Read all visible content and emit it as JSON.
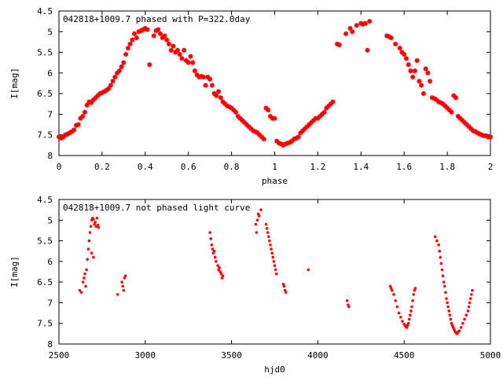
{
  "colors": {
    "data": "#ff0000",
    "frame": "#000000",
    "background": "#ffffff"
  },
  "chart_data": [
    {
      "type": "scatter",
      "title": "042818+1009.7 phased with P=322.0day",
      "xlabel": "phase",
      "ylabel": "I[mag]",
      "xlim": [
        0,
        2
      ],
      "ylim": [
        8,
        4.5
      ],
      "y_inverted": true,
      "grid": false,
      "legend": "none",
      "marker": "star",
      "xticks": [
        "0",
        "0.2",
        "0.4",
        "0.6",
        "0.8",
        "1",
        "1.2",
        "1.4",
        "1.6",
        "1.8",
        "2"
      ],
      "yticks": [
        "4.5",
        "5",
        "5.5",
        "6",
        "6.5",
        "7",
        "7.5",
        "8"
      ],
      "points": [
        [
          0.0,
          7.55
        ],
        [
          0.01,
          7.58
        ],
        [
          0.02,
          7.55
        ],
        [
          0.03,
          7.5
        ],
        [
          0.04,
          7.48
        ],
        [
          0.05,
          7.45
        ],
        [
          0.06,
          7.42
        ],
        [
          0.07,
          7.38
        ],
        [
          0.08,
          7.27
        ],
        [
          0.09,
          7.25
        ],
        [
          0.1,
          7.1
        ],
        [
          0.11,
          7.05
        ],
        [
          0.12,
          6.95
        ],
        [
          0.13,
          6.78
        ],
        [
          0.14,
          6.7
        ],
        [
          0.15,
          6.72
        ],
        [
          0.16,
          6.65
        ],
        [
          0.17,
          6.6
        ],
        [
          0.18,
          6.55
        ],
        [
          0.19,
          6.5
        ],
        [
          0.2,
          6.48
        ],
        [
          0.21,
          6.45
        ],
        [
          0.22,
          6.42
        ],
        [
          0.23,
          6.38
        ],
        [
          0.24,
          6.3
        ],
        [
          0.25,
          6.2
        ],
        [
          0.26,
          6.1
        ],
        [
          0.27,
          6.0
        ],
        [
          0.28,
          5.95
        ],
        [
          0.29,
          5.85
        ],
        [
          0.3,
          5.75
        ],
        [
          0.31,
          5.55
        ],
        [
          0.32,
          5.4
        ],
        [
          0.33,
          5.3
        ],
        [
          0.34,
          5.2
        ],
        [
          0.35,
          5.05
        ],
        [
          0.36,
          5.15
        ],
        [
          0.37,
          5.0
        ],
        [
          0.38,
          4.98
        ],
        [
          0.39,
          4.95
        ],
        [
          0.4,
          4.92
        ],
        [
          0.41,
          4.95
        ],
        [
          0.42,
          5.8
        ],
        [
          0.44,
          5.1
        ],
        [
          0.45,
          4.98
        ],
        [
          0.46,
          4.95
        ],
        [
          0.47,
          5.05
        ],
        [
          0.48,
          5.15
        ],
        [
          0.49,
          5.1
        ],
        [
          0.5,
          5.2
        ],
        [
          0.51,
          5.3
        ],
        [
          0.52,
          5.45
        ],
        [
          0.53,
          5.35
        ],
        [
          0.54,
          5.5
        ],
        [
          0.55,
          5.45
        ],
        [
          0.56,
          5.55
        ],
        [
          0.57,
          5.65
        ],
        [
          0.58,
          5.45
        ],
        [
          0.59,
          5.7
        ],
        [
          0.6,
          5.75
        ],
        [
          0.61,
          5.6
        ],
        [
          0.62,
          5.75
        ],
        [
          0.63,
          5.95
        ],
        [
          0.64,
          6.05
        ],
        [
          0.65,
          6.1
        ],
        [
          0.66,
          6.08
        ],
        [
          0.67,
          6.1
        ],
        [
          0.68,
          6.3
        ],
        [
          0.69,
          6.1
        ],
        [
          0.7,
          6.15
        ],
        [
          0.71,
          6.3
        ],
        [
          0.72,
          6.5
        ],
        [
          0.73,
          6.55
        ],
        [
          0.74,
          6.45
        ],
        [
          0.75,
          6.6
        ],
        [
          0.76,
          6.7
        ],
        [
          0.77,
          6.75
        ],
        [
          0.78,
          6.8
        ],
        [
          0.79,
          6.82
        ],
        [
          0.8,
          6.85
        ],
        [
          0.81,
          6.9
        ],
        [
          0.82,
          6.95
        ],
        [
          0.83,
          7.05
        ],
        [
          0.84,
          7.1
        ],
        [
          0.85,
          7.15
        ],
        [
          0.86,
          7.2
        ],
        [
          0.87,
          7.25
        ],
        [
          0.88,
          7.3
        ],
        [
          0.89,
          7.35
        ],
        [
          0.9,
          7.4
        ],
        [
          0.91,
          7.42
        ],
        [
          0.92,
          7.45
        ],
        [
          0.93,
          7.5
        ],
        [
          0.94,
          7.55
        ],
        [
          0.95,
          7.6
        ],
        [
          0.96,
          6.85
        ],
        [
          0.97,
          6.9
        ],
        [
          0.98,
          7.05
        ],
        [
          0.99,
          7.1
        ],
        [
          1.0,
          7.1
        ],
        [
          1.01,
          7.65
        ],
        [
          1.02,
          7.7
        ],
        [
          1.03,
          7.72
        ],
        [
          1.04,
          7.75
        ],
        [
          1.05,
          7.72
        ],
        [
          1.06,
          7.7
        ],
        [
          1.07,
          7.68
        ],
        [
          1.08,
          7.65
        ],
        [
          1.09,
          7.6
        ],
        [
          1.1,
          7.58
        ],
        [
          1.11,
          7.55
        ],
        [
          1.12,
          7.45
        ],
        [
          1.13,
          7.4
        ],
        [
          1.14,
          7.35
        ],
        [
          1.15,
          7.3
        ],
        [
          1.16,
          7.25
        ],
        [
          1.17,
          7.2
        ],
        [
          1.18,
          7.15
        ],
        [
          1.19,
          7.1
        ],
        [
          1.2,
          7.1
        ],
        [
          1.21,
          7.05
        ],
        [
          1.22,
          7.0
        ],
        [
          1.23,
          6.95
        ],
        [
          1.24,
          6.85
        ],
        [
          1.25,
          6.8
        ],
        [
          1.26,
          6.75
        ],
        [
          1.27,
          6.7
        ],
        [
          1.29,
          5.3
        ],
        [
          1.3,
          5.32
        ],
        [
          1.33,
          5.05
        ],
        [
          1.35,
          4.92
        ],
        [
          1.36,
          5.0
        ],
        [
          1.38,
          4.85
        ],
        [
          1.4,
          4.8
        ],
        [
          1.41,
          4.82
        ],
        [
          1.42,
          4.8
        ],
        [
          1.43,
          5.45
        ],
        [
          1.44,
          4.75
        ],
        [
          1.52,
          5.1
        ],
        [
          1.53,
          5.12
        ],
        [
          1.54,
          5.15
        ],
        [
          1.56,
          5.3
        ],
        [
          1.58,
          5.4
        ],
        [
          1.59,
          5.5
        ],
        [
          1.6,
          5.55
        ],
        [
          1.61,
          5.65
        ],
        [
          1.62,
          5.8
        ],
        [
          1.63,
          5.95
        ],
        [
          1.64,
          6.1
        ],
        [
          1.65,
          5.95
        ],
        [
          1.66,
          5.7
        ],
        [
          1.67,
          6.2
        ],
        [
          1.68,
          6.3
        ],
        [
          1.69,
          6.5
        ],
        [
          1.7,
          5.9
        ],
        [
          1.71,
          6.0
        ],
        [
          1.72,
          6.2
        ],
        [
          1.73,
          6.6
        ],
        [
          1.74,
          6.62
        ],
        [
          1.75,
          6.65
        ],
        [
          1.76,
          6.7
        ],
        [
          1.77,
          6.72
        ],
        [
          1.78,
          6.75
        ],
        [
          1.79,
          6.8
        ],
        [
          1.8,
          6.85
        ],
        [
          1.81,
          6.9
        ],
        [
          1.82,
          6.95
        ],
        [
          1.83,
          6.55
        ],
        [
          1.84,
          6.6
        ],
        [
          1.85,
          7.05
        ],
        [
          1.86,
          7.1
        ],
        [
          1.87,
          7.15
        ],
        [
          1.88,
          7.2
        ],
        [
          1.89,
          7.25
        ],
        [
          1.9,
          7.3
        ],
        [
          1.91,
          7.35
        ],
        [
          1.92,
          7.4
        ],
        [
          1.93,
          7.42
        ],
        [
          1.94,
          7.45
        ],
        [
          1.95,
          7.48
        ],
        [
          1.96,
          7.5
        ],
        [
          1.97,
          7.52
        ],
        [
          1.98,
          7.52
        ],
        [
          1.99,
          7.55
        ],
        [
          2.0,
          7.55
        ]
      ]
    },
    {
      "type": "scatter",
      "title": "042818+1009.7 not phased light curve",
      "xlabel": "hjd0",
      "ylabel": "I[mag]",
      "xlim": [
        2500,
        5000
      ],
      "ylim": [
        8,
        4.5
      ],
      "y_inverted": true,
      "grid": false,
      "legend": "none",
      "marker": "dot",
      "xticks": [
        "2500",
        "3000",
        "3500",
        "4000",
        "4500",
        "5000"
      ],
      "yticks": [
        "4.5",
        "5",
        "5.5",
        "6",
        "6.5",
        "7",
        "7.5",
        "8"
      ],
      "points": [
        [
          2620,
          6.7
        ],
        [
          2630,
          6.75
        ],
        [
          2640,
          6.5
        ],
        [
          2645,
          6.4
        ],
        [
          2650,
          6.3
        ],
        [
          2655,
          6.6
        ],
        [
          2660,
          6.2
        ],
        [
          2665,
          5.95
        ],
        [
          2670,
          5.7
        ],
        [
          2675,
          5.5
        ],
        [
          2680,
          5.3
        ],
        [
          2685,
          5.15
        ],
        [
          2690,
          5.0
        ],
        [
          2695,
          4.95
        ],
        [
          2700,
          4.98
        ],
        [
          2705,
          5.1
        ],
        [
          2710,
          5.05
        ],
        [
          2715,
          5.15
        ],
        [
          2720,
          4.95
        ],
        [
          2725,
          5.12
        ],
        [
          2730,
          5.18
        ],
        [
          2690,
          5.8
        ],
        [
          2700,
          5.9
        ],
        [
          2840,
          6.8
        ],
        [
          2865,
          6.5
        ],
        [
          2870,
          6.6
        ],
        [
          2875,
          6.7
        ],
        [
          2880,
          6.4
        ],
        [
          2885,
          6.35
        ],
        [
          3375,
          5.3
        ],
        [
          3380,
          5.45
        ],
        [
          3385,
          5.6
        ],
        [
          3390,
          5.7
        ],
        [
          3395,
          5.8
        ],
        [
          3400,
          5.75
        ],
        [
          3405,
          5.9
        ],
        [
          3410,
          6.0
        ],
        [
          3420,
          6.1
        ],
        [
          3425,
          6.2
        ],
        [
          3430,
          6.15
        ],
        [
          3435,
          6.25
        ],
        [
          3440,
          6.3
        ],
        [
          3445,
          6.4
        ],
        [
          3450,
          6.35
        ],
        [
          3640,
          5.1
        ],
        [
          3645,
          5.3
        ],
        [
          3650,
          5.0
        ],
        [
          3655,
          4.85
        ],
        [
          3660,
          4.9
        ],
        [
          3670,
          4.75
        ],
        [
          3700,
          5.1
        ],
        [
          3705,
          5.2
        ],
        [
          3710,
          5.3
        ],
        [
          3715,
          5.4
        ],
        [
          3720,
          5.5
        ],
        [
          3725,
          5.6
        ],
        [
          3730,
          5.7
        ],
        [
          3735,
          5.8
        ],
        [
          3740,
          5.9
        ],
        [
          3745,
          6.0
        ],
        [
          3750,
          6.1
        ],
        [
          3755,
          6.2
        ],
        [
          3760,
          6.3
        ],
        [
          3800,
          6.55
        ],
        [
          3805,
          6.6
        ],
        [
          3810,
          6.7
        ],
        [
          3815,
          6.75
        ],
        [
          3945,
          6.2
        ],
        [
          4170,
          6.95
        ],
        [
          4175,
          7.05
        ],
        [
          4180,
          7.1
        ],
        [
          4420,
          6.6
        ],
        [
          4425,
          6.65
        ],
        [
          4430,
          6.7
        ],
        [
          4440,
          6.8
        ],
        [
          4450,
          6.95
        ],
        [
          4460,
          7.1
        ],
        [
          4470,
          7.25
        ],
        [
          4480,
          7.35
        ],
        [
          4490,
          7.45
        ],
        [
          4500,
          7.52
        ],
        [
          4505,
          7.55
        ],
        [
          4510,
          7.58
        ],
        [
          4515,
          7.6
        ],
        [
          4520,
          7.55
        ],
        [
          4525,
          7.5
        ],
        [
          4530,
          7.4
        ],
        [
          4535,
          7.3
        ],
        [
          4540,
          7.2
        ],
        [
          4545,
          7.1
        ],
        [
          4550,
          6.95
        ],
        [
          4555,
          6.8
        ],
        [
          4560,
          6.7
        ],
        [
          4565,
          6.65
        ],
        [
          4680,
          5.4
        ],
        [
          4690,
          5.5
        ],
        [
          4700,
          5.6
        ],
        [
          4705,
          5.75
        ],
        [
          4710,
          5.9
        ],
        [
          4715,
          6.05
        ],
        [
          4720,
          6.2
        ],
        [
          4725,
          6.35
        ],
        [
          4730,
          6.5
        ],
        [
          4735,
          6.6
        ],
        [
          4740,
          6.75
        ],
        [
          4745,
          6.9
        ],
        [
          4750,
          7.0
        ],
        [
          4755,
          7.1
        ],
        [
          4760,
          7.2
        ],
        [
          4765,
          7.3
        ],
        [
          4770,
          7.4
        ],
        [
          4775,
          7.5
        ],
        [
          4780,
          7.55
        ],
        [
          4785,
          7.6
        ],
        [
          4790,
          7.65
        ],
        [
          4795,
          7.7
        ],
        [
          4800,
          7.72
        ],
        [
          4805,
          7.75
        ],
        [
          4810,
          7.73
        ],
        [
          4815,
          7.7
        ],
        [
          4820,
          7.68
        ],
        [
          4830,
          7.6
        ],
        [
          4840,
          7.5
        ],
        [
          4850,
          7.4
        ],
        [
          4860,
          7.3
        ],
        [
          4870,
          7.2
        ],
        [
          4875,
          7.1
        ],
        [
          4880,
          7.0
        ],
        [
          4885,
          6.9
        ],
        [
          4890,
          6.8
        ],
        [
          4895,
          6.7
        ]
      ]
    }
  ]
}
